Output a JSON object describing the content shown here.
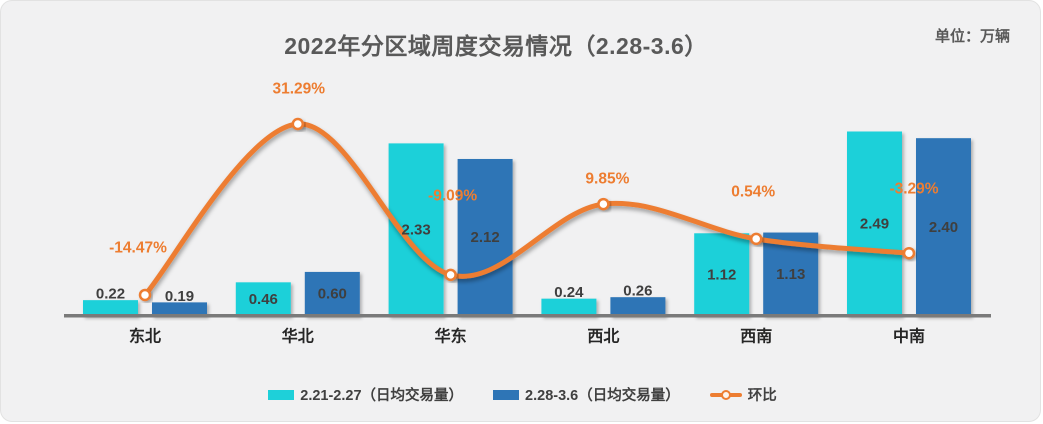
{
  "chart_data": {
    "type": "bar",
    "subtype": "grouped-bars-with-smooth-line-overlay",
    "title": "2022年分区域周度交易情况（2.28-3.6）",
    "unit_label": "单位：万辆",
    "categories": [
      "东北",
      "华北",
      "华东",
      "西北",
      "西南",
      "中南"
    ],
    "bar_series": [
      {
        "name": "2.21-2.27（日均交易量）",
        "color": "#1ed0d9",
        "values": [
          0.22,
          0.46,
          2.33,
          0.24,
          1.12,
          2.49
        ]
      },
      {
        "name": "2.28-3.6（日均交易量）",
        "color": "#2e75b6",
        "values": [
          0.19,
          0.6,
          2.12,
          0.26,
          1.13,
          2.4
        ]
      }
    ],
    "line_series": {
      "name": "环比",
      "color": "#ed7d31",
      "marker": "circle-white-fill-orange-ring",
      "values_pct": [
        -14.47,
        31.29,
        -9.09,
        9.85,
        0.54,
        -3.29
      ],
      "labels": [
        "-14.47%",
        "31.29%",
        "-9.09%",
        "9.85%",
        "0.54%",
        "-3.29%"
      ]
    },
    "axes": {
      "value_axis": "hidden",
      "secondary_pct_axis": "hidden",
      "gridlines": false,
      "axis_line_color": "#7a7a7a"
    },
    "legend_position": "bottom",
    "styles": {
      "background": "#f1f1f2",
      "title_color": "#595959",
      "value_label_color": "#3f3f3f",
      "category_label_color": "#262626"
    }
  }
}
